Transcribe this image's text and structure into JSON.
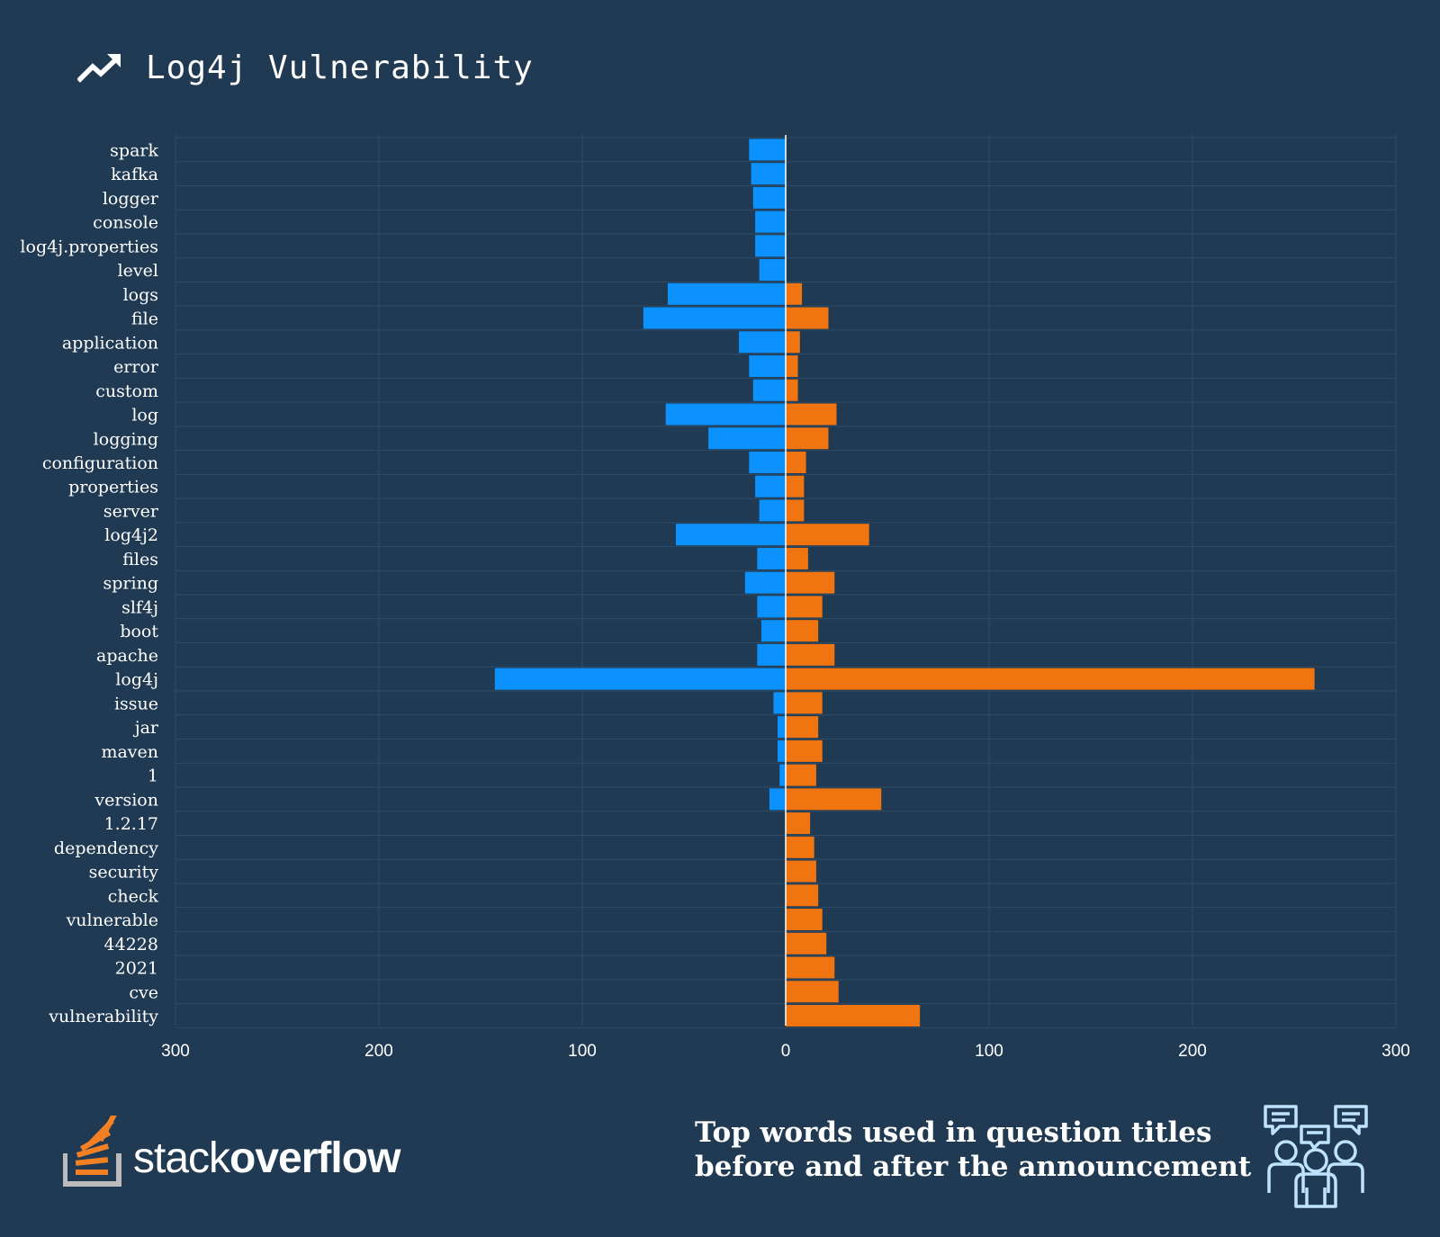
{
  "header": {
    "title": "Log4j Vulnerability",
    "icon": "trend-up-icon"
  },
  "footer": {
    "brand_light": "stack",
    "brand_bold": "overflow",
    "caption_line1": "Top words used in question titles",
    "caption_line2": "before and after the announcement",
    "icon": "community-chat-icon"
  },
  "colors": {
    "background": "#1f3a52",
    "before": "#0c92ff",
    "after": "#f07410",
    "grid": "#2f4d68",
    "logo_orange": "#f48024",
    "logo_gray": "#bcbbbb"
  },
  "chart_data": {
    "type": "bar",
    "orientation": "horizontal-diverging",
    "title": "Log4j Vulnerability",
    "xlim": [
      -300,
      300
    ],
    "xticks": [
      -300,
      -200,
      -100,
      0,
      100,
      200,
      300
    ],
    "xtick_labels": [
      "300",
      "200",
      "100",
      "0",
      "100",
      "200",
      "300"
    ],
    "grid": true,
    "categories": [
      "spark",
      "kafka",
      "logger",
      "console",
      "log4j.properties",
      "level",
      "logs",
      "file",
      "application",
      "error",
      "custom",
      "log",
      "logging",
      "configuration",
      "properties",
      "server",
      "log4j2",
      "files",
      "spring",
      "slf4j",
      "boot",
      "apache",
      "log4j",
      "issue",
      "jar",
      "maven",
      "1",
      "version",
      "1.2.17",
      "dependency",
      "security",
      "check",
      "vulnerable",
      "44228",
      "2021",
      "cve",
      "vulnerability"
    ],
    "series": [
      {
        "values": [
          18,
          17,
          16,
          15,
          15,
          13,
          58,
          70,
          23,
          18,
          16,
          59,
          38,
          18,
          15,
          13,
          54,
          14,
          20,
          14,
          12,
          14,
          143,
          6,
          4,
          4,
          3,
          8,
          0,
          0,
          0,
          0,
          0,
          0,
          0,
          0,
          0
        ]
      },
      {
        "values": [
          0,
          0,
          0,
          0,
          0,
          0,
          8,
          21,
          7,
          6,
          6,
          25,
          21,
          10,
          9,
          9,
          41,
          11,
          24,
          18,
          16,
          24,
          260,
          18,
          16,
          18,
          15,
          47,
          12,
          14,
          15,
          16,
          18,
          20,
          24,
          26,
          66
        ]
      }
    ]
  }
}
